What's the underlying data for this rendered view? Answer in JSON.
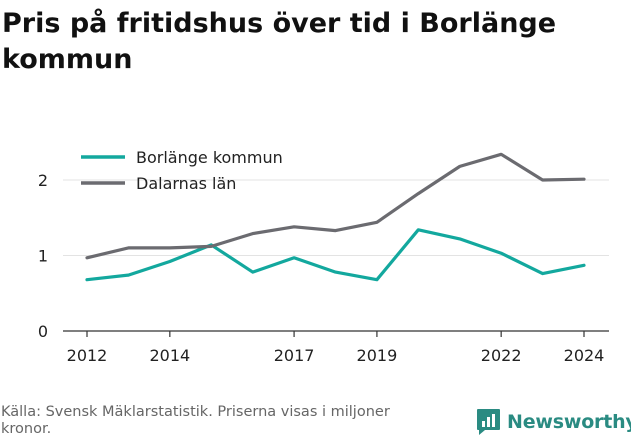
{
  "page": {
    "title": "Pris på fritidshus över tid i Borlänge kommun",
    "footer": "Källa: Svensk Mäklarstatistik. Priserna visas i miljoner kronor.",
    "brand": "Newsworthy",
    "brand_color": "#2a8b82"
  },
  "chart_data": {
    "type": "line",
    "title": "Pris på fritidshus över tid i Borlänge kommun",
    "xlabel": "",
    "ylabel": "",
    "xlim": [
      2012,
      2024
    ],
    "ylim": [
      0,
      2.5
    ],
    "x_ticks": [
      2012,
      2014,
      2017,
      2019,
      2022,
      2024
    ],
    "y_ticks": [
      0,
      1,
      2
    ],
    "grid": true,
    "legend_position": "top-left",
    "x": [
      2012,
      2013,
      2014,
      2015,
      2016,
      2017,
      2018,
      2019,
      2020,
      2021,
      2022,
      2023,
      2024
    ],
    "series": [
      {
        "name": "Borlänge kommun",
        "color": "#13a89e",
        "values": [
          0.68,
          0.74,
          0.92,
          1.14,
          0.78,
          0.97,
          0.78,
          0.68,
          1.34,
          1.22,
          1.03,
          0.76,
          0.87
        ]
      },
      {
        "name": "Dalarnas län",
        "color": "#6b6b70",
        "values": [
          0.97,
          1.1,
          1.1,
          1.12,
          1.29,
          1.38,
          1.33,
          1.44,
          1.82,
          2.18,
          2.34,
          2.0,
          2.01
        ]
      }
    ]
  }
}
